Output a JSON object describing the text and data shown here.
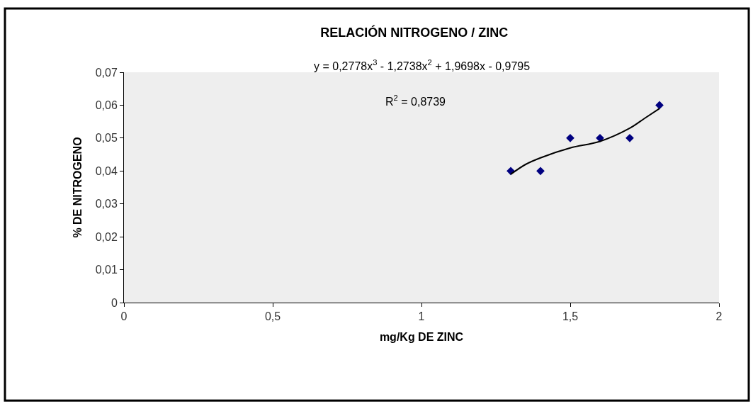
{
  "chart_data": {
    "type": "scatter",
    "title": "RELACIÓN NITROGENO / ZINC",
    "xlabel": "mg/Kg DE ZINC",
    "ylabel": "% DE NITROGENO",
    "annotations": [
      "y = 0,2778x$^{3}$ - 1,2738x$^{2}$ + 1,9698x - 0,9795",
      "R$^{2}$ = 0,8739"
    ],
    "x": [
      1.3,
      1.4,
      1.5,
      1.6,
      1.7,
      1.8
    ],
    "series": [
      {
        "color": "#000080",
        "values": [
          0.04,
          0.04,
          0.05,
          0.05,
          0.05,
          0.06
        ],
        "marker": "diamond"
      },
      {
        "type": "line",
        "color": "#000000",
        "x": [
          1.3,
          1.35,
          1.4,
          1.5,
          1.6,
          1.7,
          1.75,
          1.8
        ],
        "values": [
          0.039,
          0.042,
          0.044,
          0.047,
          0.049,
          0.053,
          0.056,
          0.059
        ],
        "marker": "none",
        "line_style": "solid"
      }
    ],
    "xlim": [
      0,
      2
    ],
    "xticks": [
      0,
      {
        "value": 0.5,
        "label": "0,5"
      },
      1,
      {
        "value": 1.5,
        "label": "1,5"
      },
      2
    ],
    "ylim": [
      0,
      0.07
    ],
    "yticks": [
      0,
      {
        "value": 0.01,
        "label": "0,01"
      },
      {
        "value": 0.02,
        "label": "0,02"
      },
      {
        "value": 0.03,
        "label": "0,03"
      },
      {
        "value": 0.04,
        "label": "0,04"
      },
      {
        "value": 0.05,
        "label": "0,05"
      },
      {
        "value": 0.06,
        "label": "0,06"
      },
      {
        "value": 0.07,
        "label": "0,07"
      }
    ],
    "grid": false
  }
}
